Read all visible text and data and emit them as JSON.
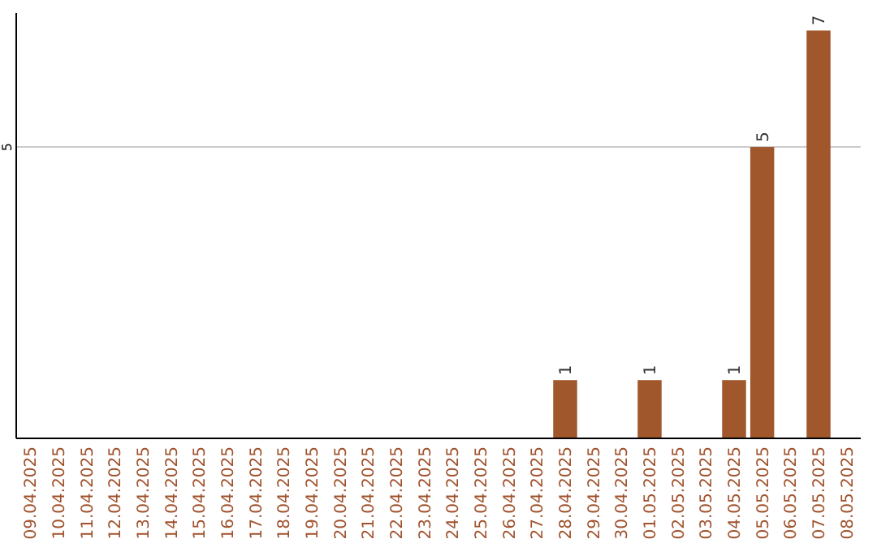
{
  "chart_data": {
    "type": "bar",
    "categories": [
      "09.04.2025",
      "10.04.2025",
      "11.04.2025",
      "12.04.2025",
      "13.04.2025",
      "14.04.2025",
      "15.04.2025",
      "16.04.2025",
      "17.04.2025",
      "18.04.2025",
      "19.04.2025",
      "20.04.2025",
      "21.04.2025",
      "22.04.2025",
      "23.04.2025",
      "24.04.2025",
      "25.04.2025",
      "26.04.2025",
      "27.04.2025",
      "28.04.2025",
      "29.04.2025",
      "30.04.2025",
      "01.05.2025",
      "02.05.2025",
      "03.05.2025",
      "04.05.2025",
      "05.05.2025",
      "06.05.2025",
      "07.05.2025",
      "08.05.2025"
    ],
    "values": [
      null,
      null,
      null,
      null,
      null,
      null,
      null,
      null,
      null,
      null,
      null,
      null,
      null,
      null,
      null,
      null,
      null,
      null,
      null,
      1,
      null,
      null,
      1,
      null,
      null,
      1,
      5,
      null,
      7,
      null
    ],
    "color": "#a0572b",
    "ylim": [
      0,
      7.3
    ],
    "yticks": [
      5
    ],
    "grid": "y",
    "data_labels": true
  }
}
